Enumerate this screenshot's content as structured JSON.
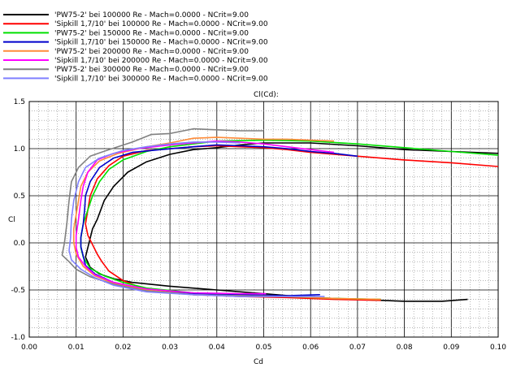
{
  "chart_data": {
    "type": "line",
    "title": "Cl(Cd):",
    "xlabel": "Cd",
    "ylabel": "Cl",
    "xlim": [
      0.0,
      0.1
    ],
    "ylim": [
      -1.0,
      1.5
    ],
    "xticks": [
      "0.00",
      "0.01",
      "0.02",
      "0.03",
      "0.04",
      "0.05",
      "0.06",
      "0.07",
      "0.08",
      "0.09",
      "0.10"
    ],
    "yticks": [
      "-1.0",
      "-0.5",
      "0.0",
      "0.5",
      "1.0",
      "1.5"
    ],
    "grid": true,
    "legend_position": "top-left",
    "series": [
      {
        "name": "'PW75-2' bei 100000 Re - Mach=0.0000 - NCrit=9.00",
        "color": "#000000",
        "points": [
          [
            0.0935,
            -0.6
          ],
          [
            0.088,
            -0.62
          ],
          [
            0.08,
            -0.62
          ],
          [
            0.07,
            -0.6
          ],
          [
            0.06,
            -0.58
          ],
          [
            0.05,
            -0.54
          ],
          [
            0.04,
            -0.5
          ],
          [
            0.03,
            -0.46
          ],
          [
            0.022,
            -0.42
          ],
          [
            0.018,
            -0.38
          ],
          [
            0.015,
            -0.33
          ],
          [
            0.013,
            -0.26
          ],
          [
            0.012,
            -0.15
          ],
          [
            0.0125,
            -0.05
          ],
          [
            0.013,
            0.05
          ],
          [
            0.0135,
            0.15
          ],
          [
            0.0145,
            0.25
          ],
          [
            0.016,
            0.45
          ],
          [
            0.018,
            0.6
          ],
          [
            0.021,
            0.75
          ],
          [
            0.025,
            0.86
          ],
          [
            0.03,
            0.94
          ],
          [
            0.035,
            0.99
          ],
          [
            0.04,
            1.01
          ],
          [
            0.045,
            1.04
          ],
          [
            0.05,
            1.06
          ],
          [
            0.06,
            1.06
          ],
          [
            0.07,
            1.03
          ],
          [
            0.08,
            0.99
          ],
          [
            0.09,
            0.97
          ],
          [
            0.1,
            0.95
          ]
        ]
      },
      {
        "name": "'Sipkill 1,7/10' bei 100000 Re - Mach=0.0000 - NCrit=9.00",
        "color": "#ff0000",
        "points": [
          [
            0.075,
            -0.61
          ],
          [
            0.065,
            -0.6
          ],
          [
            0.055,
            -0.58
          ],
          [
            0.045,
            -0.57
          ],
          [
            0.035,
            -0.55
          ],
          [
            0.025,
            -0.5
          ],
          [
            0.02,
            -0.4
          ],
          [
            0.017,
            -0.3
          ],
          [
            0.0155,
            -0.2
          ],
          [
            0.0145,
            -0.12
          ],
          [
            0.0135,
            -0.02
          ],
          [
            0.0125,
            0.08
          ],
          [
            0.012,
            0.2
          ],
          [
            0.0125,
            0.35
          ],
          [
            0.013,
            0.5
          ],
          [
            0.0145,
            0.68
          ],
          [
            0.017,
            0.82
          ],
          [
            0.02,
            0.92
          ],
          [
            0.025,
            0.98
          ],
          [
            0.03,
            1.0
          ],
          [
            0.035,
            1.02
          ],
          [
            0.04,
            1.03
          ],
          [
            0.045,
            1.02
          ],
          [
            0.05,
            1.01
          ],
          [
            0.055,
            0.99
          ],
          [
            0.06,
            0.96
          ],
          [
            0.07,
            0.92
          ],
          [
            0.08,
            0.88
          ],
          [
            0.09,
            0.85
          ],
          [
            0.1,
            0.81
          ]
        ]
      },
      {
        "name": "'PW75-2' bei 150000 Re - Mach=0.0000 - NCrit=9.00",
        "color": "#00e000",
        "points": [
          [
            0.075,
            -0.6
          ],
          [
            0.065,
            -0.59
          ],
          [
            0.055,
            -0.57
          ],
          [
            0.045,
            -0.55
          ],
          [
            0.035,
            -0.53
          ],
          [
            0.025,
            -0.48
          ],
          [
            0.02,
            -0.42
          ],
          [
            0.016,
            -0.35
          ],
          [
            0.013,
            -0.27
          ],
          [
            0.0115,
            -0.15
          ],
          [
            0.011,
            -0.05
          ],
          [
            0.011,
            0.05
          ],
          [
            0.0115,
            0.2
          ],
          [
            0.0125,
            0.35
          ],
          [
            0.0135,
            0.5
          ],
          [
            0.015,
            0.65
          ],
          [
            0.017,
            0.78
          ],
          [
            0.02,
            0.88
          ],
          [
            0.025,
            0.97
          ],
          [
            0.03,
            1.02
          ],
          [
            0.035,
            1.05
          ],
          [
            0.04,
            1.08
          ],
          [
            0.05,
            1.09
          ],
          [
            0.06,
            1.08
          ],
          [
            0.07,
            1.05
          ],
          [
            0.08,
            1.01
          ],
          [
            0.09,
            0.97
          ],
          [
            0.1,
            0.93
          ]
        ]
      },
      {
        "name": "'Sipkill 1,7/10' bei 150000 Re - Mach=0.0000 - NCrit=9.00",
        "color": "#0000cc",
        "points": [
          [
            0.062,
            -0.55
          ],
          [
            0.055,
            -0.56
          ],
          [
            0.045,
            -0.55
          ],
          [
            0.035,
            -0.54
          ],
          [
            0.025,
            -0.5
          ],
          [
            0.018,
            -0.42
          ],
          [
            0.014,
            -0.33
          ],
          [
            0.012,
            -0.24
          ],
          [
            0.0115,
            -0.14
          ],
          [
            0.011,
            -0.04
          ],
          [
            0.011,
            0.06
          ],
          [
            0.0115,
            0.2
          ],
          [
            0.0118,
            0.35
          ],
          [
            0.012,
            0.5
          ],
          [
            0.013,
            0.65
          ],
          [
            0.015,
            0.8
          ],
          [
            0.018,
            0.9
          ],
          [
            0.022,
            0.96
          ],
          [
            0.028,
            0.99
          ],
          [
            0.035,
            1.02
          ],
          [
            0.04,
            1.04
          ],
          [
            0.045,
            1.03
          ],
          [
            0.05,
            1.02
          ],
          [
            0.055,
            1.0
          ],
          [
            0.06,
            0.97
          ],
          [
            0.065,
            0.95
          ],
          [
            0.07,
            0.92
          ]
        ]
      },
      {
        "name": "'PW75-2' bei 200000 Re - Mach=0.0000 - NCrit=9.00",
        "color": "#ff8c3a",
        "points": [
          [
            0.075,
            -0.6
          ],
          [
            0.065,
            -0.59
          ],
          [
            0.055,
            -0.57
          ],
          [
            0.045,
            -0.56
          ],
          [
            0.035,
            -0.55
          ],
          [
            0.025,
            -0.5
          ],
          [
            0.018,
            -0.43
          ],
          [
            0.014,
            -0.35
          ],
          [
            0.0115,
            -0.25
          ],
          [
            0.01,
            -0.12
          ],
          [
            0.0095,
            0.0
          ],
          [
            0.0095,
            0.15
          ],
          [
            0.01,
            0.3
          ],
          [
            0.0105,
            0.45
          ],
          [
            0.011,
            0.6
          ],
          [
            0.0125,
            0.75
          ],
          [
            0.015,
            0.87
          ],
          [
            0.019,
            0.95
          ],
          [
            0.025,
            1.02
          ],
          [
            0.03,
            1.06
          ],
          [
            0.035,
            1.11
          ],
          [
            0.04,
            1.12
          ],
          [
            0.045,
            1.11
          ],
          [
            0.05,
            1.1
          ],
          [
            0.055,
            1.1
          ],
          [
            0.06,
            1.09
          ],
          [
            0.065,
            1.08
          ]
        ]
      },
      {
        "name": "'Sipkill 1,7/10' bei 200000 Re - Mach=0.0000 - NCrit=9.00",
        "color": "#ff00ff",
        "points": [
          [
            0.0505,
            -0.54
          ],
          [
            0.045,
            -0.54
          ],
          [
            0.035,
            -0.53
          ],
          [
            0.025,
            -0.49
          ],
          [
            0.018,
            -0.42
          ],
          [
            0.014,
            -0.34
          ],
          [
            0.012,
            -0.25
          ],
          [
            0.0105,
            -0.15
          ],
          [
            0.01,
            -0.05
          ],
          [
            0.01,
            0.08
          ],
          [
            0.0105,
            0.25
          ],
          [
            0.011,
            0.45
          ],
          [
            0.0115,
            0.6
          ],
          [
            0.0125,
            0.75
          ],
          [
            0.0145,
            0.88
          ],
          [
            0.018,
            0.95
          ],
          [
            0.023,
            1.0
          ],
          [
            0.03,
            1.04
          ],
          [
            0.035,
            1.06
          ],
          [
            0.04,
            1.08
          ],
          [
            0.045,
            1.07
          ],
          [
            0.05,
            1.05
          ],
          [
            0.055,
            1.02
          ],
          [
            0.06,
            0.99
          ],
          [
            0.065,
            0.96
          ]
        ]
      },
      {
        "name": "'PW75-2' bei 300000 Re - Mach=0.0000 - NCrit=9.00",
        "color": "#808080",
        "points": [
          [
            0.061,
            -0.57
          ],
          [
            0.055,
            -0.57
          ],
          [
            0.045,
            -0.56
          ],
          [
            0.035,
            -0.55
          ],
          [
            0.025,
            -0.51
          ],
          [
            0.018,
            -0.44
          ],
          [
            0.013,
            -0.36
          ],
          [
            0.01,
            -0.28
          ],
          [
            0.0085,
            -0.2
          ],
          [
            0.007,
            -0.13
          ],
          [
            0.0075,
            0.0
          ],
          [
            0.008,
            0.2
          ],
          [
            0.0085,
            0.45
          ],
          [
            0.009,
            0.65
          ],
          [
            0.0105,
            0.8
          ],
          [
            0.013,
            0.92
          ],
          [
            0.017,
            0.99
          ],
          [
            0.022,
            1.07
          ],
          [
            0.026,
            1.15
          ],
          [
            0.03,
            1.16
          ],
          [
            0.035,
            1.21
          ],
          [
            0.04,
            1.2
          ],
          [
            0.045,
            1.19
          ],
          [
            0.05,
            1.19
          ]
        ]
      },
      {
        "name": "'Sipkill 1,7/10' bei 300000 Re - Mach=0.0000 - NCrit=9.00",
        "color": "#8080ff",
        "points": [
          [
            0.063,
            -0.57
          ],
          [
            0.055,
            -0.57
          ],
          [
            0.045,
            -0.57
          ],
          [
            0.035,
            -0.55
          ],
          [
            0.025,
            -0.52
          ],
          [
            0.018,
            -0.45
          ],
          [
            0.014,
            -0.37
          ],
          [
            0.011,
            -0.28
          ],
          [
            0.009,
            -0.18
          ],
          [
            0.0085,
            -0.08
          ],
          [
            0.0088,
            0.05
          ],
          [
            0.009,
            0.25
          ],
          [
            0.0095,
            0.45
          ],
          [
            0.0105,
            0.65
          ],
          [
            0.012,
            0.8
          ],
          [
            0.015,
            0.9
          ],
          [
            0.02,
            0.98
          ],
          [
            0.025,
            1.02
          ],
          [
            0.03,
            1.05
          ],
          [
            0.035,
            1.07
          ],
          [
            0.04,
            1.07
          ],
          [
            0.045,
            1.06
          ]
        ]
      }
    ]
  }
}
